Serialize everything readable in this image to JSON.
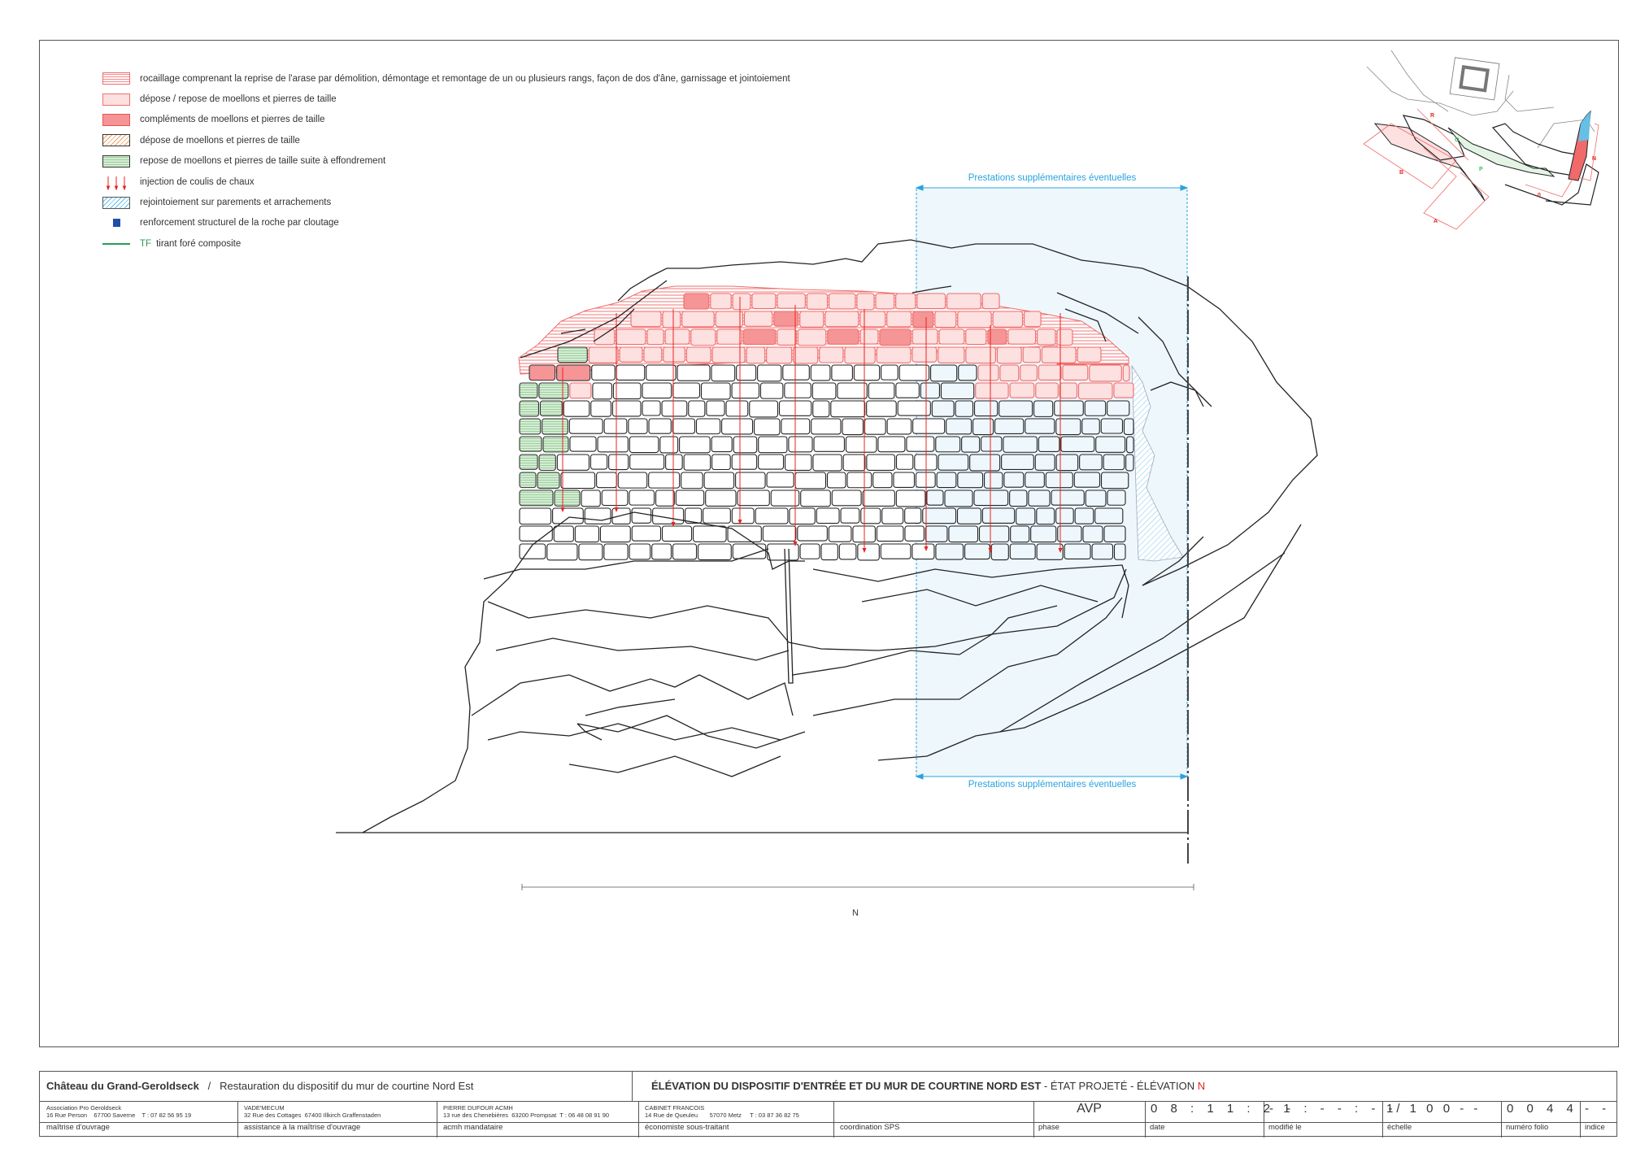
{
  "legend": [
    {
      "icon": "rocaillage-swatch",
      "label": "rocaillage comprenant la reprise de l'arase par démolition, démontage et remontage de un ou plusieurs rangs, façon de dos d'âne, garnissage et jointoiement"
    },
    {
      "icon": "depose-repose-swatch",
      "label": "dépose / repose de moellons et pierres de taille"
    },
    {
      "icon": "complements-swatch",
      "label": "compléments de moellons et pierres de taille"
    },
    {
      "icon": "depose-swatch",
      "label": "dépose de moellons et pierres de taille"
    },
    {
      "icon": "repose-swatch",
      "label": "repose de moellons et pierres de taille suite à effondrement"
    },
    {
      "icon": "injection-arrows-icon",
      "label": "injection de coulis de chaux"
    },
    {
      "icon": "rejointoiement-swatch",
      "label": "rejointoiement sur parements et arrachements"
    },
    {
      "icon": "cloutage-square-icon",
      "label": "renforcement structurel de la roche par cloutage"
    },
    {
      "icon": "tirant-line-icon",
      "code": "TF",
      "label": "tirant foré composite"
    }
  ],
  "colors": {
    "rocaillage": "#f06a6a",
    "depose_repose": "#fde0e0",
    "complements": "#f59595",
    "repose": "#b8e0b8",
    "rejointoiement": "#5cc0ee",
    "zone_supplementaire": "#eef7fc",
    "cloutage": "#1f4fa8",
    "tirant": "#2e9a5a",
    "accent_red": "#e8231f"
  },
  "drawing": {
    "zone_label_top": "Prestations supplémentaires éventuelles",
    "zone_label_bottom": "Prestations supplémentaires éventuelles",
    "dimension_label": "N"
  },
  "key_map": {
    "labels": [
      "R",
      "B",
      "A",
      "O",
      "P",
      "0",
      "N"
    ]
  },
  "title_block": {
    "site": "Château du Grand-Geroldseck",
    "separator": "/",
    "project": "Restauration du dispositif du mur de courtine Nord Est",
    "drawing_title_bold": "ÉLÉVATION DU DISPOSITIF D'ENTRÉE ET DU MUR DE COURTINE NORD EST",
    "drawing_title_rest": " - ÉTAT PROJETÉ - ÉLÉVATION ",
    "drawing_title_letter": "N",
    "parties": [
      {
        "name": "Association Pro Geroldseck",
        "address": "16 Rue Person    67700 Saverne    T : 07 82 56 95 19",
        "role": "maîtrise d'ouvrage"
      },
      {
        "name": "VADE'MECUM",
        "address": "32 Rue des Cottages  67400 Illkirch Graffenstaden",
        "role": "assistance à la maîtrise d'ouvrage"
      },
      {
        "name": "PIERRE DUFOUR ACMH",
        "address": "13 rue des Chenebières  63200 Prompsat  T : 06 48 08 91 90",
        "role": "acmh mandataire"
      },
      {
        "name": "CABINET FRANCOIS",
        "address": "14 Rue de Queuleu       57070 Metz     T : 03 87 36 82 75",
        "role": "économiste sous-traitant"
      },
      {
        "name": "",
        "address": "",
        "role": "coordination SPS"
      }
    ],
    "phase": {
      "value": "AVP",
      "label": "phase"
    },
    "date": {
      "value": "0 8 : 1 1 : 2 1",
      "label": "date"
    },
    "modified": {
      "value": "- - : - - : - -",
      "label": "modifié le"
    },
    "scale": {
      "value": "1/ 1 0 0 - -",
      "label": "échelle"
    },
    "folio": {
      "value": "0 0 4 4",
      "label": "numéro folio"
    },
    "index": {
      "value": "- -",
      "label": "indice"
    }
  }
}
